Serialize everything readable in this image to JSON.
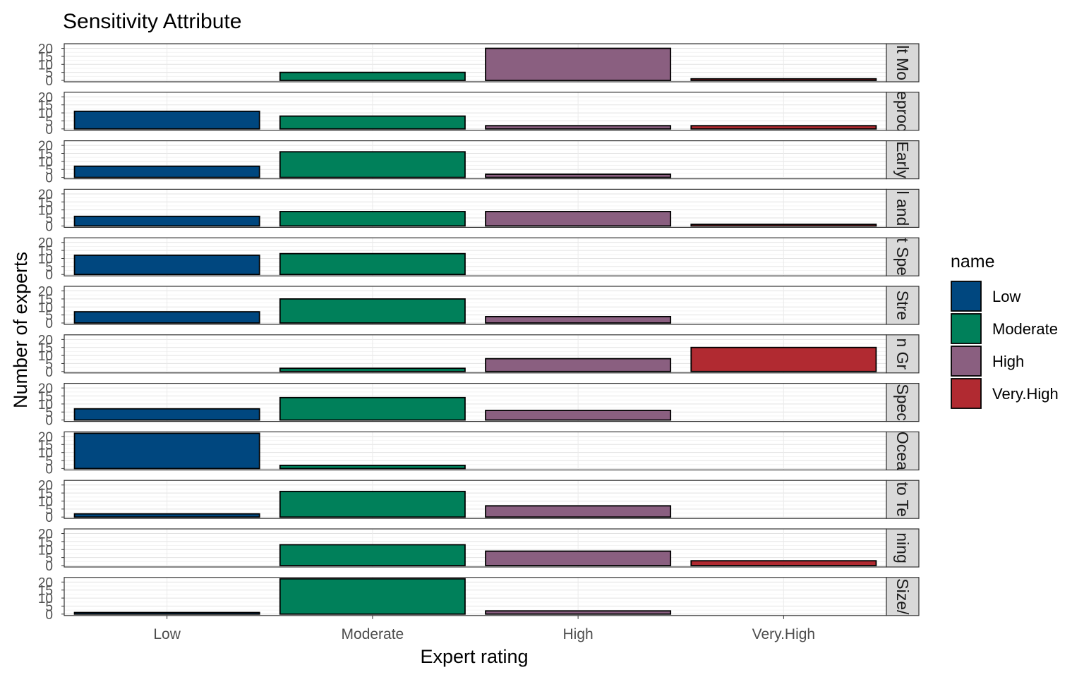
{
  "chart_data": {
    "type": "bar",
    "title": "Sensitivity Attribute",
    "xlabel": "Expert rating",
    "ylabel": "Number of experts",
    "categories": [
      "Low",
      "Moderate",
      "High",
      "Very.High"
    ],
    "ylim": [
      0,
      22
    ],
    "yticks": [
      0,
      5,
      10,
      15,
      20
    ],
    "grid": true,
    "legend": {
      "title": "name",
      "position": "right",
      "entries": [
        "Low",
        "Moderate",
        "High",
        "Very.High"
      ]
    },
    "colors": {
      "Low": "#00477F",
      "Moderate": "#00805A",
      "High": "#8A5F80",
      "Very.High": "#B12A31"
    },
    "panels": [
      {
        "strip": "lt Mo",
        "values": [
          0,
          5,
          20,
          1
        ]
      },
      {
        "strip": "eproc",
        "values": [
          11,
          8,
          2,
          2
        ]
      },
      {
        "strip": "Early",
        "values": [
          7,
          16,
          2,
          0
        ]
      },
      {
        "strip": "l and",
        "values": [
          6,
          9,
          9,
          1
        ]
      },
      {
        "strip": "t Spe",
        "values": [
          12,
          13,
          0,
          0
        ]
      },
      {
        "strip": "Stre",
        "values": [
          7,
          15,
          4,
          0
        ]
      },
      {
        "strip": "n Gr",
        "values": [
          0,
          2,
          8,
          15
        ]
      },
      {
        "strip": "Spec",
        "values": [
          7,
          14,
          6,
          0
        ]
      },
      {
        "strip": "Ocea",
        "values": [
          22,
          2,
          0,
          0
        ]
      },
      {
        "strip": "to Te",
        "values": [
          2,
          16,
          7,
          0
        ]
      },
      {
        "strip": "ning",
        "values": [
          0,
          13,
          9,
          3
        ]
      },
      {
        "strip": "Size/",
        "values": [
          1,
          22,
          2,
          0
        ]
      }
    ]
  }
}
